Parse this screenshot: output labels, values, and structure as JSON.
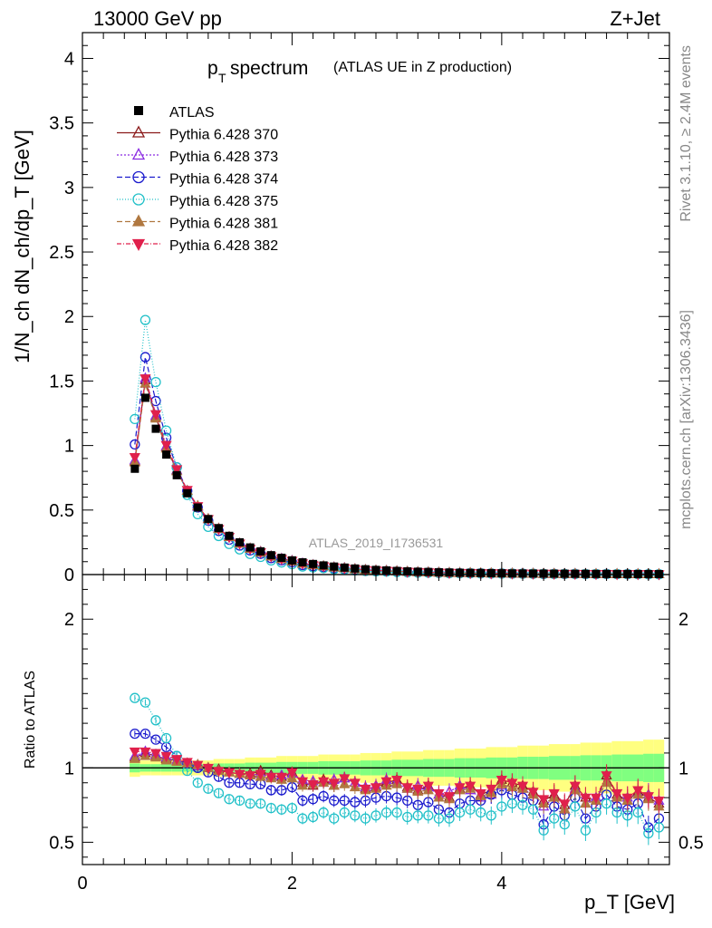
{
  "header": {
    "energy": "13000 GeV pp",
    "process": "Z+Jet"
  },
  "side": {
    "rivet": "Rivet 3.1.10, ≥ 2.4M events",
    "mcplots": "mcplots.cern.ch [arXiv:1306.3436]"
  },
  "chart_data": {
    "type": "scatter",
    "title_main": "p",
    "title_sub": "T",
    "title_rest": " spectrum",
    "title_note": "(ATLAS UE in Z production)",
    "analysis_id": "ATLAS_2019_I1736531",
    "ylabel": "1/N_ch dN_ch/dp_T [GeV]",
    "ratio_ylabel": "Ratio to ATLAS",
    "xlabel": "p_T [GeV]",
    "xlim": [
      0,
      5.6
    ],
    "ylim": [
      0,
      4.2
    ],
    "ratio_ylim": [
      0.35,
      2.3
    ],
    "xticks": [
      "0",
      "2",
      "4"
    ],
    "yticks": [
      "0",
      "0.5",
      "1",
      "1.5",
      "2",
      "2.5",
      "3",
      "3.5",
      "4"
    ],
    "ratio_yticks": [
      "0.5",
      "1",
      "2"
    ],
    "x": [
      0.5,
      0.6,
      0.7,
      0.8,
      0.9,
      1.0,
      1.1,
      1.2,
      1.3,
      1.4,
      1.5,
      1.6,
      1.7,
      1.8,
      1.9,
      2.0,
      2.1,
      2.2,
      2.3,
      2.4,
      2.5,
      2.6,
      2.7,
      2.8,
      2.9,
      3.0,
      3.1,
      3.2,
      3.3,
      3.4,
      3.5,
      3.6,
      3.7,
      3.8,
      3.9,
      4.0,
      4.1,
      4.2,
      4.3,
      4.4,
      4.5,
      4.6,
      4.7,
      4.8,
      4.9,
      5.0,
      5.1,
      5.2,
      5.3,
      5.4,
      5.5
    ],
    "data": {
      "name": "ATLAS",
      "values": [
        0.82,
        1.37,
        1.13,
        0.93,
        0.77,
        0.63,
        0.52,
        0.43,
        0.36,
        0.3,
        0.25,
        0.21,
        0.18,
        0.15,
        0.13,
        0.11,
        0.095,
        0.082,
        0.071,
        0.062,
        0.054,
        0.047,
        0.041,
        0.036,
        0.032,
        0.028,
        0.025,
        0.022,
        0.02,
        0.018,
        0.016,
        0.014,
        0.013,
        0.012,
        0.011,
        0.01,
        0.009,
        0.0085,
        0.008,
        0.0075,
        0.007,
        0.0065,
        0.006,
        0.0055,
        0.005,
        0.0048,
        0.0045,
        0.0042,
        0.004,
        0.0038,
        0.0036
      ]
    },
    "band": {
      "yellow_halfwidth": [
        0.06,
        0.05,
        0.05,
        0.05,
        0.05,
        0.05,
        0.05,
        0.05,
        0.06,
        0.06,
        0.06,
        0.07,
        0.07,
        0.07,
        0.08,
        0.08,
        0.08,
        0.08,
        0.09,
        0.09,
        0.09,
        0.09,
        0.1,
        0.1,
        0.1,
        0.11,
        0.11,
        0.11,
        0.12,
        0.12,
        0.12,
        0.13,
        0.13,
        0.13,
        0.14,
        0.14,
        0.14,
        0.15,
        0.15,
        0.15,
        0.16,
        0.16,
        0.16,
        0.17,
        0.17,
        0.17,
        0.18,
        0.18,
        0.18,
        0.19,
        0.19
      ],
      "green_halfwidth": [
        0.03,
        0.025,
        0.025,
        0.025,
        0.025,
        0.025,
        0.025,
        0.025,
        0.03,
        0.03,
        0.03,
        0.035,
        0.035,
        0.035,
        0.04,
        0.04,
        0.04,
        0.04,
        0.045,
        0.045,
        0.045,
        0.045,
        0.05,
        0.05,
        0.05,
        0.055,
        0.055,
        0.055,
        0.06,
        0.06,
        0.06,
        0.065,
        0.065,
        0.065,
        0.07,
        0.07,
        0.07,
        0.075,
        0.075,
        0.075,
        0.08,
        0.08,
        0.08,
        0.085,
        0.085,
        0.085,
        0.09,
        0.09,
        0.09,
        0.095,
        0.095
      ]
    },
    "series": [
      {
        "name": "Pythia 6.428 370",
        "color": "#8b1a1a",
        "marker": "tri-up-open",
        "dash": "",
        "ratio": [
          1.07,
          1.1,
          1.08,
          1.06,
          1.05,
          1.03,
          1.02,
          1.0,
          0.99,
          0.97,
          0.96,
          0.96,
          0.98,
          0.95,
          0.94,
          0.97,
          0.9,
          0.88,
          0.92,
          0.88,
          0.93,
          0.9,
          0.86,
          0.87,
          0.9,
          0.92,
          0.87,
          0.85,
          0.88,
          0.82,
          0.8,
          0.86,
          0.88,
          0.82,
          0.85,
          0.92,
          0.9,
          0.88,
          0.84,
          0.78,
          0.82,
          0.75,
          0.88,
          0.8,
          0.78,
          0.95,
          0.82,
          0.78,
          0.84,
          0.8,
          0.76
        ]
      },
      {
        "name": "Pythia 6.428 373",
        "color": "#8a2be2",
        "marker": "tri-up-open",
        "dash": "2,2",
        "ratio": [
          1.08,
          1.11,
          1.09,
          1.07,
          1.05,
          1.03,
          1.01,
          1.0,
          0.98,
          0.97,
          0.96,
          0.95,
          0.96,
          0.94,
          0.95,
          0.96,
          0.92,
          0.91,
          0.9,
          0.92,
          0.93,
          0.9,
          0.87,
          0.88,
          0.92,
          0.9,
          0.86,
          0.88,
          0.87,
          0.82,
          0.84,
          0.88,
          0.85,
          0.8,
          0.82,
          0.88,
          0.87,
          0.86,
          0.82,
          0.74,
          0.8,
          0.72,
          0.86,
          0.76,
          0.8,
          0.9,
          0.8,
          0.8,
          0.82,
          0.82,
          0.78
        ]
      },
      {
        "name": "Pythia 6.428 374",
        "color": "#1a1acd",
        "marker": "circ-open",
        "dash": "6,3",
        "ratio": [
          1.23,
          1.23,
          1.19,
          1.14,
          1.08,
          1.03,
          1.0,
          0.97,
          0.94,
          0.9,
          0.9,
          0.89,
          0.89,
          0.85,
          0.85,
          0.87,
          0.78,
          0.79,
          0.81,
          0.78,
          0.78,
          0.77,
          0.78,
          0.8,
          0.81,
          0.8,
          0.78,
          0.75,
          0.77,
          0.72,
          0.7,
          0.76,
          0.78,
          0.78,
          0.82,
          0.85,
          0.82,
          0.8,
          0.78,
          0.62,
          0.74,
          0.68,
          0.8,
          0.66,
          0.74,
          0.82,
          0.74,
          0.72,
          0.76,
          0.6,
          0.66
        ]
      },
      {
        "name": "Pythia 6.428 375",
        "color": "#20c0c8",
        "marker": "circ-open",
        "dash": "1,2",
        "ratio": [
          1.47,
          1.44,
          1.32,
          1.2,
          1.08,
          0.98,
          0.9,
          0.86,
          0.83,
          0.79,
          0.78,
          0.76,
          0.76,
          0.73,
          0.72,
          0.73,
          0.66,
          0.67,
          0.7,
          0.66,
          0.7,
          0.68,
          0.66,
          0.68,
          0.7,
          0.7,
          0.67,
          0.68,
          0.68,
          0.66,
          0.66,
          0.7,
          0.72,
          0.7,
          0.68,
          0.74,
          0.76,
          0.75,
          0.72,
          0.58,
          0.66,
          0.62,
          0.74,
          0.58,
          0.7,
          0.76,
          0.7,
          0.68,
          0.7,
          0.56,
          0.6
        ]
      },
      {
        "name": "Pythia 6.428 381",
        "color": "#b07840",
        "marker": "tri-up",
        "dash": "6,3",
        "ratio": [
          1.06,
          1.08,
          1.07,
          1.05,
          1.04,
          1.03,
          1.02,
          1.0,
          0.98,
          0.97,
          0.96,
          0.95,
          0.94,
          0.93,
          0.92,
          0.93,
          0.88,
          0.89,
          0.9,
          0.88,
          0.89,
          0.87,
          0.85,
          0.86,
          0.88,
          0.89,
          0.86,
          0.84,
          0.85,
          0.8,
          0.79,
          0.85,
          0.86,
          0.81,
          0.83,
          0.89,
          0.87,
          0.86,
          0.82,
          0.76,
          0.8,
          0.72,
          0.85,
          0.76,
          0.78,
          0.9,
          0.8,
          0.78,
          0.82,
          0.79,
          0.74
        ]
      },
      {
        "name": "Pythia 6.428 382",
        "color": "#e0204c",
        "marker": "tri-down",
        "dash": "5,2,1,2",
        "ratio": [
          1.11,
          1.11,
          1.1,
          1.08,
          1.06,
          1.04,
          1.02,
          1.0,
          0.98,
          0.97,
          0.96,
          0.95,
          0.96,
          0.94,
          0.94,
          0.97,
          0.91,
          0.89,
          0.91,
          0.9,
          0.93,
          0.9,
          0.86,
          0.87,
          0.91,
          0.92,
          0.87,
          0.86,
          0.88,
          0.83,
          0.81,
          0.87,
          0.88,
          0.83,
          0.86,
          0.92,
          0.9,
          0.88,
          0.84,
          0.79,
          0.83,
          0.76,
          0.88,
          0.8,
          0.8,
          0.95,
          0.83,
          0.8,
          0.85,
          0.81,
          0.78
        ]
      }
    ]
  }
}
